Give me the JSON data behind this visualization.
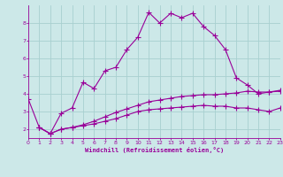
{
  "xlabel": "Windchill (Refroidissement éolien,°C)",
  "background_color": "#cce8e8",
  "grid_color": "#a8d0d0",
  "line_color": "#990099",
  "xlim": [
    0,
    23
  ],
  "ylim": [
    1.5,
    9.0
  ],
  "yticks": [
    2,
    3,
    4,
    5,
    6,
    7,
    8
  ],
  "xticks": [
    0,
    1,
    2,
    3,
    4,
    5,
    6,
    7,
    8,
    9,
    10,
    11,
    12,
    13,
    14,
    15,
    16,
    17,
    18,
    19,
    20,
    21,
    22,
    23
  ],
  "series1_x": [
    0,
    1,
    2,
    3,
    4,
    5,
    6,
    7,
    8,
    9,
    10,
    11,
    12,
    13,
    14,
    15,
    16,
    17,
    18,
    19,
    20,
    21,
    22,
    23
  ],
  "series1_y": [
    3.7,
    2.1,
    1.75,
    2.9,
    3.2,
    4.65,
    4.3,
    5.3,
    5.5,
    6.5,
    7.2,
    8.6,
    8.0,
    8.55,
    8.3,
    8.55,
    7.8,
    7.3,
    6.5,
    4.9,
    4.5,
    4.0,
    4.1,
    4.15
  ],
  "series2_x": [
    1,
    2,
    3,
    4,
    5,
    6,
    7,
    8,
    9,
    10,
    11,
    12,
    13,
    14,
    15,
    16,
    17,
    18,
    19,
    20,
    21,
    22,
    23
  ],
  "series2_y": [
    2.1,
    1.75,
    2.0,
    2.1,
    2.2,
    2.3,
    2.45,
    2.6,
    2.8,
    3.0,
    3.1,
    3.15,
    3.2,
    3.25,
    3.3,
    3.35,
    3.3,
    3.3,
    3.2,
    3.2,
    3.1,
    3.0,
    3.2
  ],
  "series3_x": [
    1,
    2,
    3,
    4,
    5,
    6,
    7,
    8,
    9,
    10,
    11,
    12,
    13,
    14,
    15,
    16,
    17,
    18,
    19,
    20,
    21,
    22,
    23
  ],
  "series3_y": [
    2.1,
    1.75,
    2.0,
    2.1,
    2.25,
    2.45,
    2.7,
    2.95,
    3.15,
    3.35,
    3.55,
    3.65,
    3.75,
    3.85,
    3.9,
    3.95,
    3.95,
    4.0,
    4.05,
    4.15,
    4.1,
    4.1,
    4.2
  ]
}
